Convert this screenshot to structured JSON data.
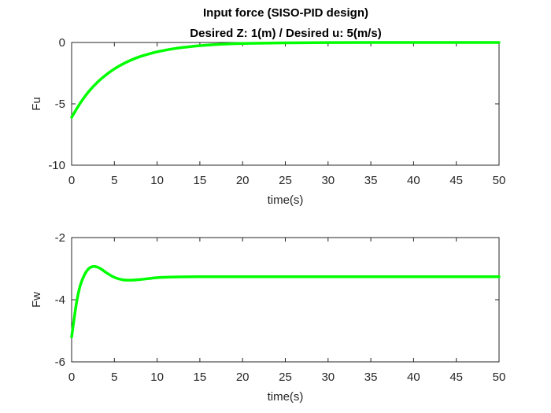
{
  "figure": {
    "title_line1": "Input force (SISO-PID design)",
    "title_line2": "Desired Z: 1(m) / Desired u: 5(m/s)"
  },
  "chart_data": [
    {
      "type": "line",
      "title": "",
      "xlabel": "time(s)",
      "ylabel": "Fu",
      "xlim": [
        0,
        50
      ],
      "ylim": [
        -10,
        0
      ],
      "xticks": [
        "0",
        "5",
        "10",
        "15",
        "20",
        "25",
        "30",
        "35",
        "40",
        "45",
        "50"
      ],
      "yticks": [
        "-10",
        "-5",
        "0"
      ],
      "grid": false,
      "series": [
        {
          "color": "#00ff00",
          "x": [
            0,
            1,
            2,
            3,
            4,
            5,
            6,
            7,
            8,
            9,
            10,
            12,
            14,
            16,
            18,
            20,
            25,
            30,
            35,
            40,
            45,
            50
          ],
          "y": [
            -6.1,
            -4.95,
            -4.0,
            -3.25,
            -2.65,
            -2.15,
            -1.75,
            -1.42,
            -1.15,
            -0.94,
            -0.76,
            -0.5,
            -0.33,
            -0.21,
            -0.13,
            -0.08,
            -0.03,
            -0.01,
            0.0,
            0.0,
            0.0,
            0.0
          ]
        }
      ]
    },
    {
      "type": "line",
      "title": "",
      "xlabel": "time(s)",
      "ylabel": "Fw",
      "xlim": [
        0,
        50
      ],
      "ylim": [
        -6,
        -2
      ],
      "xticks": [
        "0",
        "5",
        "10",
        "15",
        "20",
        "25",
        "30",
        "35",
        "40",
        "45",
        "50"
      ],
      "yticks": [
        "-6",
        "-4",
        "-2"
      ],
      "grid": false,
      "series": [
        {
          "color": "#00ff00",
          "x": [
            0,
            0.3,
            0.6,
            1,
            1.5,
            2,
            2.5,
            3,
            3.5,
            4,
            5,
            6,
            7,
            8,
            9,
            10,
            12,
            15,
            20,
            30,
            40,
            50
          ],
          "y": [
            -5.2,
            -4.6,
            -4.05,
            -3.55,
            -3.2,
            -3.0,
            -2.93,
            -2.95,
            -3.02,
            -3.12,
            -3.28,
            -3.36,
            -3.37,
            -3.35,
            -3.32,
            -3.29,
            -3.27,
            -3.26,
            -3.26,
            -3.26,
            -3.26,
            -3.26
          ]
        }
      ]
    }
  ]
}
